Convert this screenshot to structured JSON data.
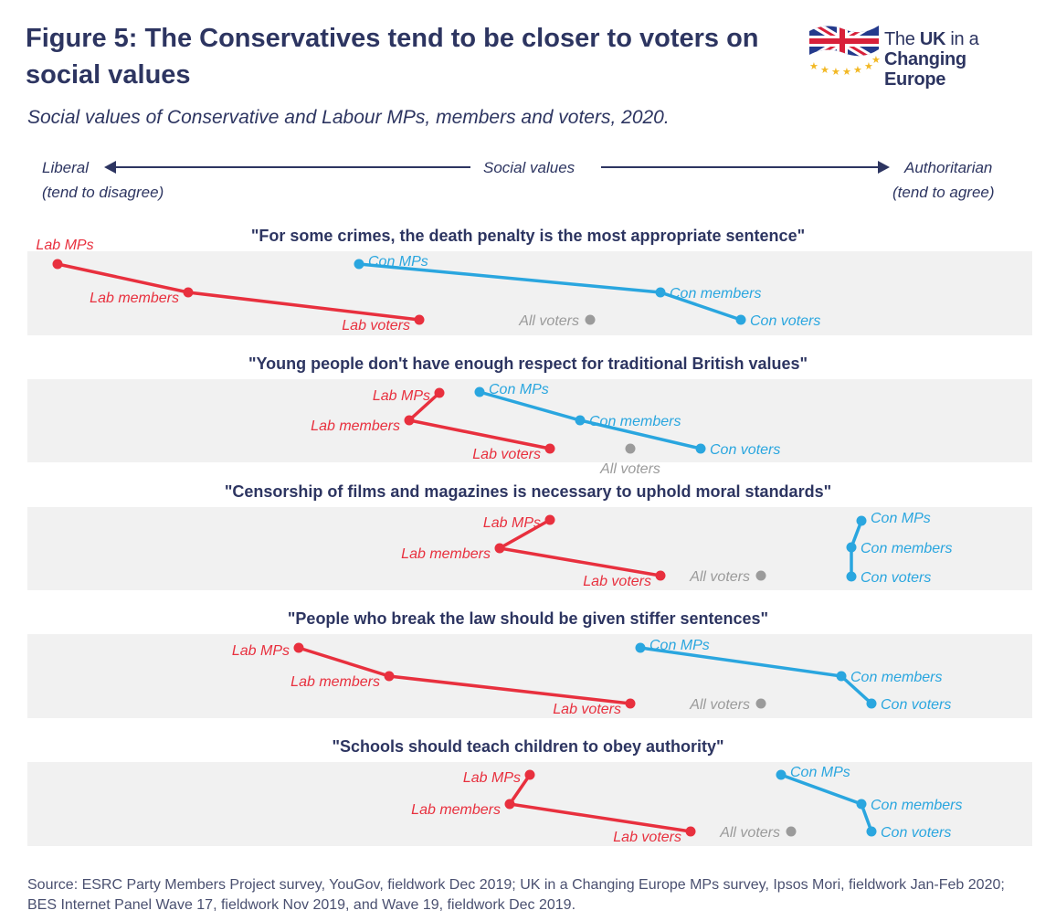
{
  "title": "Figure 5: The Conservatives tend to be closer to voters on social values",
  "subtitle": "Social values of Conservative and Labour MPs, members and voters, 2020.",
  "logo": {
    "line1_prefix": "The ",
    "line1_bold": "UK",
    "line1_suffix": " in a",
    "line2": "Changing Europe"
  },
  "axis": {
    "left_label": "Liberal",
    "left_sub": "(tend to disagree)",
    "center_label": "Social values",
    "right_label": "Authoritarian",
    "right_sub": "(tend to agree)"
  },
  "source": "Source: ESRC Party Members Project survey, YouGov, fieldwork Dec 2019; UK in a Changing Europe MPs survey, Ipsos Mori, fieldwork Jan-Feb 2020; BES Internet Panel Wave 17, fieldwork Nov 2019, and Wave 19, fieldwork Dec 2019.",
  "colors": {
    "labour": "#e8303e",
    "conservative": "#2aa6df",
    "all_voters": "#9b9b9b",
    "band": "#f1f1f1",
    "text": "#2d3561"
  },
  "chart_data": {
    "type": "scatter",
    "x_range": [
      0,
      1
    ],
    "x_scale": "relative position from Liberal (0) to Authoritarian (1)",
    "panels": [
      {
        "statement": "\"For some crimes, the death penalty is the most appropriate sentence\"",
        "lab": {
          "mps": 0.03,
          "members": 0.16,
          "voters": 0.39
        },
        "con": {
          "mps": 0.33,
          "members": 0.63,
          "voters": 0.71
        },
        "all_voters": 0.56
      },
      {
        "statement": "\"Young people don't have enough respect for traditional British values\"",
        "lab": {
          "mps": 0.41,
          "members": 0.38,
          "voters": 0.52
        },
        "con": {
          "mps": 0.45,
          "members": 0.55,
          "voters": 0.67
        },
        "all_voters": 0.6
      },
      {
        "statement": "\"Censorship of films and magazines is necessary to uphold moral standards\"",
        "lab": {
          "mps": 0.52,
          "members": 0.47,
          "voters": 0.63
        },
        "con": {
          "mps": 0.83,
          "members": 0.82,
          "voters": 0.82
        },
        "all_voters": 0.73
      },
      {
        "statement": "\"People who break the law should be given stiffer sentences\"",
        "lab": {
          "mps": 0.27,
          "members": 0.36,
          "voters": 0.6
        },
        "con": {
          "mps": 0.61,
          "members": 0.81,
          "voters": 0.84
        },
        "all_voters": 0.73
      },
      {
        "statement": "\"Schools should teach children to obey authority\"",
        "lab": {
          "mps": 0.5,
          "members": 0.48,
          "voters": 0.66
        },
        "con": {
          "mps": 0.75,
          "members": 0.83,
          "voters": 0.84
        },
        "all_voters": 0.76
      }
    ],
    "point_labels": {
      "lab_mps": "Lab MPs",
      "lab_members": "Lab members",
      "lab_voters": "Lab voters",
      "con_mps": "Con MPs",
      "con_members": "Con members",
      "con_voters": "Con voters",
      "all_voters": "All voters"
    }
  }
}
